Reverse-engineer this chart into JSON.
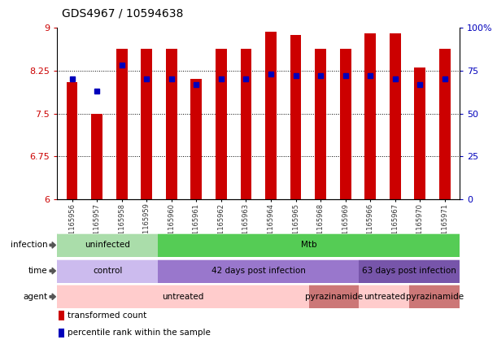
{
  "title": "GDS4967 / 10594638",
  "samples": [
    "GSM1165956",
    "GSM1165957",
    "GSM1165958",
    "GSM1165959",
    "GSM1165960",
    "GSM1165961",
    "GSM1165962",
    "GSM1165963",
    "GSM1165964",
    "GSM1165965",
    "GSM1165968",
    "GSM1165969",
    "GSM1165966",
    "GSM1165967",
    "GSM1165970",
    "GSM1165971"
  ],
  "bar_heights": [
    8.05,
    7.5,
    8.63,
    8.63,
    8.63,
    8.1,
    8.63,
    8.63,
    8.93,
    8.87,
    8.63,
    8.63,
    8.9,
    8.9,
    8.3,
    8.63
  ],
  "percentile_ranks": [
    70,
    63,
    78,
    70,
    70,
    67,
    70,
    70,
    73,
    72,
    72,
    72,
    72,
    70,
    67,
    70
  ],
  "bar_color": "#cc0000",
  "dot_color": "#0000bb",
  "ylim_left": [
    6,
    9
  ],
  "ylim_right": [
    0,
    100
  ],
  "yticks_left": [
    6,
    6.75,
    7.5,
    8.25,
    9
  ],
  "yticks_right": [
    0,
    25,
    50,
    75,
    100
  ],
  "ytick_labels_left": [
    "6",
    "6.75",
    "7.5",
    "8.25",
    "9"
  ],
  "ytick_labels_right": [
    "0",
    "25",
    "50",
    "75",
    "100%"
  ],
  "infection_groups": [
    {
      "label": "uninfected",
      "start": 0,
      "end": 4,
      "color": "#aaddaa"
    },
    {
      "label": "Mtb",
      "start": 4,
      "end": 16,
      "color": "#55cc55"
    }
  ],
  "time_groups": [
    {
      "label": "control",
      "start": 0,
      "end": 4,
      "color": "#ccbbee"
    },
    {
      "label": "42 days post infection",
      "start": 4,
      "end": 12,
      "color": "#9977cc"
    },
    {
      "label": "63 days post infection",
      "start": 12,
      "end": 16,
      "color": "#7755aa"
    }
  ],
  "agent_groups": [
    {
      "label": "untreated",
      "start": 0,
      "end": 10,
      "color": "#ffcccc"
    },
    {
      "label": "pyrazinamide",
      "start": 10,
      "end": 12,
      "color": "#cc7777"
    },
    {
      "label": "untreated",
      "start": 12,
      "end": 14,
      "color": "#ffcccc"
    },
    {
      "label": "pyrazinamide",
      "start": 14,
      "end": 16,
      "color": "#cc7777"
    }
  ],
  "legend_items": [
    {
      "label": "transformed count",
      "color": "#cc0000",
      "marker": "s"
    },
    {
      "label": "percentile rank within the sample",
      "color": "#0000bb",
      "marker": "s"
    }
  ],
  "row_labels": [
    "infection",
    "time",
    "agent"
  ],
  "background_color": "#ffffff",
  "tick_label_color_left": "#cc0000",
  "tick_label_color_right": "#0000bb",
  "title_fontsize": 10,
  "bar_width": 0.45,
  "xlim": [
    -0.6,
    15.6
  ]
}
